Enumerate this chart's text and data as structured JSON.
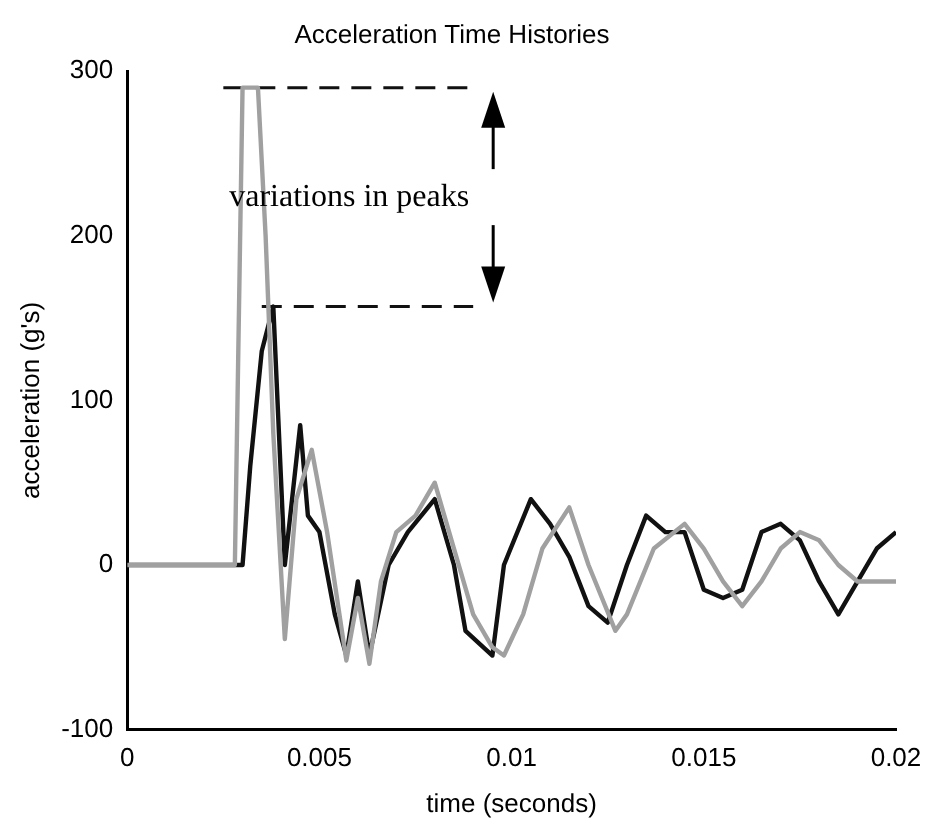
{
  "chart_data": {
    "type": "line",
    "title": "Acceleration Time Histories",
    "xlabel": "time (seconds)",
    "ylabel": "acceleration (g's)",
    "xlim": [
      0,
      0.02
    ],
    "xticks": [
      0,
      0.005,
      0.01,
      0.015,
      0.02
    ],
    "ylim": [
      -100,
      300
    ],
    "yticks": [
      -100,
      0,
      100,
      200,
      300
    ],
    "grid": false,
    "legend": false,
    "marker": "none",
    "series": [
      {
        "color": "#a0a0a0",
        "x": [
          0,
          0.0028,
          0.003,
          0.0034,
          0.0036,
          0.0038,
          0.0041,
          0.0044,
          0.0048,
          0.0052,
          0.0057,
          0.006,
          0.0063,
          0.0066,
          0.007,
          0.0075,
          0.008,
          0.0085,
          0.009,
          0.0095,
          0.0098,
          0.0103,
          0.0108,
          0.0115,
          0.012,
          0.0127,
          0.013,
          0.0137,
          0.0145,
          0.015,
          0.0155,
          0.016,
          0.0165,
          0.017,
          0.0175,
          0.018,
          0.0185,
          0.019,
          0.0195,
          0.02
        ],
        "values": [
          0,
          0,
          290,
          290,
          200,
          80,
          -45,
          40,
          70,
          20,
          -58,
          -20,
          -60,
          -10,
          20,
          30,
          50,
          10,
          -30,
          -50,
          -55,
          -30,
          10,
          35,
          0,
          -40,
          -30,
          10,
          25,
          10,
          -10,
          -25,
          -10,
          10,
          20,
          15,
          0,
          -10,
          -10,
          -10
        ]
      },
      {
        "color": "#111111",
        "x": [
          0,
          0.003,
          0.0032,
          0.0035,
          0.0038,
          0.0041,
          0.0045,
          0.0047,
          0.005,
          0.0054,
          0.0057,
          0.006,
          0.0063,
          0.0068,
          0.0073,
          0.008,
          0.0085,
          0.0088,
          0.0095,
          0.0098,
          0.0105,
          0.011,
          0.0115,
          0.012,
          0.0125,
          0.013,
          0.0135,
          0.014,
          0.0145,
          0.015,
          0.0155,
          0.016,
          0.0165,
          0.017,
          0.0175,
          0.018,
          0.0185,
          0.019,
          0.0195,
          0.02
        ],
        "values": [
          0,
          0,
          60,
          130,
          157,
          0,
          85,
          30,
          20,
          -30,
          -55,
          -10,
          -55,
          0,
          20,
          40,
          0,
          -40,
          -55,
          0,
          40,
          25,
          5,
          -25,
          -35,
          0,
          30,
          20,
          20,
          -15,
          -20,
          -15,
          20,
          25,
          15,
          -10,
          -30,
          -10,
          10,
          20
        ]
      },
      {
        "color": "#111111",
        "line_style": "dashed",
        "x": [
          0.0025,
          0.009
        ],
        "values": [
          290,
          290
        ]
      },
      {
        "color": "#111111",
        "line_style": "dashed",
        "x": [
          0.0035,
          0.009
        ],
        "values": [
          157,
          157
        ]
      }
    ],
    "annotations": [
      "variations in peaks"
    ]
  }
}
